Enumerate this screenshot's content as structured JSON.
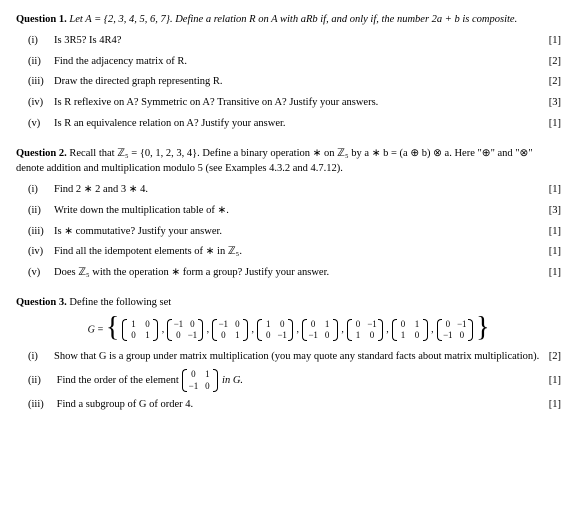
{
  "q1": {
    "header_prefix": "Question 1.",
    "header_text": " Let A = {2, 3, 4, 5, 6, 7}. Define a relation R on A with aRb if, and only if, the number 2a + b is composite.",
    "items": [
      {
        "num": "(i)",
        "text": "Is 3R5? Is 4R4?",
        "marks": "[1]"
      },
      {
        "num": "(ii)",
        "text": "Find the adjacency matrix of R.",
        "marks": "[2]"
      },
      {
        "num": "(iii)",
        "text": "Draw the directed graph representing R.",
        "marks": "[2]"
      },
      {
        "num": "(iv)",
        "text": "Is R reflexive on A? Symmetric on A? Transitive on A? Justify your answers.",
        "marks": "[3]"
      },
      {
        "num": "(v)",
        "text": "Is R an equivalence relation on A? Justify your answer.",
        "marks": "[1]"
      }
    ]
  },
  "q2": {
    "header_prefix": "Question 2.",
    "header_text": " Recall that ℤ₅ = {0, 1, 2, 3, 4}. Define a binary operation ∗ on ℤ₅ by a ∗ b = (a ⊕ b) ⊗ a. Here \"⊕\" and \"⊗\" denote addition and multiplication modulo 5 (see Examples 4.3.2 and 4.7.12).",
    "items": [
      {
        "num": "(i)",
        "text": "Find 2 ∗ 2 and 3 ∗ 4.",
        "marks": "[1]"
      },
      {
        "num": "(ii)",
        "text": "Write down the multiplication table of ∗.",
        "marks": "[3]"
      },
      {
        "num": "(iii)",
        "text": "Is ∗ commutative? Justify your answer.",
        "marks": "[1]"
      },
      {
        "num": "(iv)",
        "text": "Find all the idempotent elements of ∗ in ℤ₅.",
        "marks": "[1]"
      },
      {
        "num": "(v)",
        "text": "Does ℤ₅ with the operation ∗ form a group? Justify your answer.",
        "marks": "[1]"
      }
    ]
  },
  "q3": {
    "header_prefix": "Question 3.",
    "header_text": " Define the following set",
    "g_label": "G =",
    "matrices": [
      [
        [
          "1",
          "0"
        ],
        [
          "0",
          "1"
        ]
      ],
      [
        [
          "−1",
          "0"
        ],
        [
          "0",
          "−1"
        ]
      ],
      [
        [
          "−1",
          "0"
        ],
        [
          "0",
          "1"
        ]
      ],
      [
        [
          "1",
          "0"
        ],
        [
          "0",
          "−1"
        ]
      ],
      [
        [
          "0",
          "1"
        ],
        [
          "−1",
          "0"
        ]
      ],
      [
        [
          "0",
          "−1"
        ],
        [
          "1",
          "0"
        ]
      ],
      [
        [
          "0",
          "1"
        ],
        [
          "1",
          "0"
        ]
      ],
      [
        [
          "0",
          "−1"
        ],
        [
          "−1",
          "0"
        ]
      ]
    ],
    "items": [
      {
        "num": "(i)",
        "text": "Show that G is a group under matrix multiplication (you may quote any standard facts about matrix multiplication).",
        "marks": "[2]"
      }
    ],
    "item_ii": {
      "num": "(ii)",
      "pre": "Find the order of the element ",
      "matrix": [
        [
          "0",
          "1"
        ],
        [
          "−1",
          "0"
        ]
      ],
      "post": " in G.",
      "marks": "[1]"
    },
    "item_iii": {
      "num": "(iii)",
      "text": "Find a subgroup of G of order 4.",
      "marks": "[1]"
    }
  }
}
